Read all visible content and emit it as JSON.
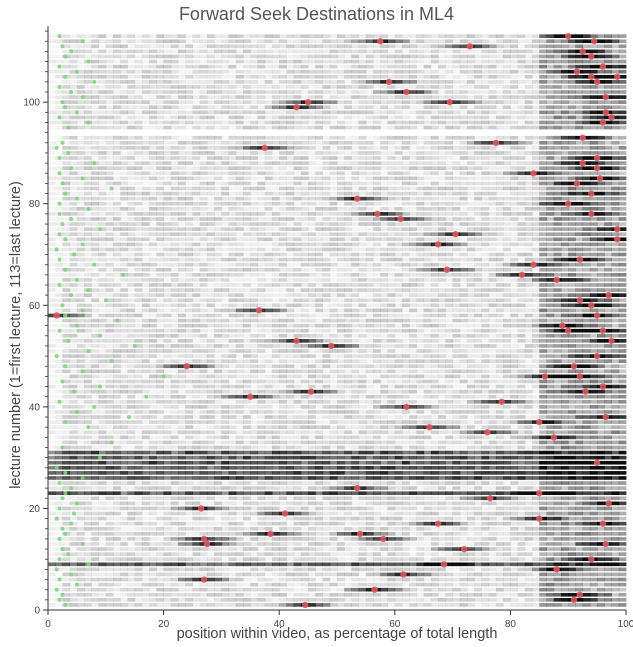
{
  "chart_data": {
    "type": "heatmap",
    "title": "Forward Seek Destinations in ML4",
    "xlabel": "position within video, as percentage of total length",
    "ylabel": "lecture number (1=first lecture, 113=last lecture)",
    "xlim": [
      0,
      100
    ],
    "ylim": [
      0,
      115
    ],
    "x_ticks": [
      0,
      20,
      40,
      60,
      80,
      100
    ],
    "y_ticks": [
      0,
      20,
      40,
      60,
      80,
      100
    ],
    "grid": false,
    "legend": "none",
    "rows": 113,
    "colors": {
      "intensity": "#000000",
      "max_marker": "#e0565b",
      "min_marker": "#7ed67a",
      "axis": "#333333",
      "title": "#555555"
    },
    "max_points": [
      {
        "x": 44.5,
        "y": 1
      },
      {
        "x": 91,
        "y": 2
      },
      {
        "x": 92,
        "y": 3
      },
      {
        "x": 56.5,
        "y": 4
      },
      {
        "x": 27,
        "y": 6
      },
      {
        "x": 61.5,
        "y": 7
      },
      {
        "x": 88,
        "y": 8
      },
      {
        "x": 68.5,
        "y": 9
      },
      {
        "x": 94,
        "y": 10
      },
      {
        "x": 72,
        "y": 12
      },
      {
        "x": 27.5,
        "y": 13
      },
      {
        "x": 96.5,
        "y": 13
      },
      {
        "x": 58,
        "y": 14
      },
      {
        "x": 27,
        "y": 14
      },
      {
        "x": 38.5,
        "y": 15
      },
      {
        "x": 54,
        "y": 15
      },
      {
        "x": 67.5,
        "y": 17
      },
      {
        "x": 96,
        "y": 17
      },
      {
        "x": 85,
        "y": 18
      },
      {
        "x": 41,
        "y": 19
      },
      {
        "x": 26.5,
        "y": 20
      },
      {
        "x": 97,
        "y": 21
      },
      {
        "x": 76.5,
        "y": 22
      },
      {
        "x": 85,
        "y": 23
      },
      {
        "x": 53.5,
        "y": 24
      },
      {
        "x": 95,
        "y": 29
      },
      {
        "x": 87.5,
        "y": 34
      },
      {
        "x": 76,
        "y": 35
      },
      {
        "x": 66,
        "y": 36
      },
      {
        "x": 85,
        "y": 37
      },
      {
        "x": 96.5,
        "y": 38
      },
      {
        "x": 62,
        "y": 40
      },
      {
        "x": 78.5,
        "y": 41
      },
      {
        "x": 35,
        "y": 42
      },
      {
        "x": 45.5,
        "y": 43
      },
      {
        "x": 93,
        "y": 43
      },
      {
        "x": 96,
        "y": 44
      },
      {
        "x": 86,
        "y": 46
      },
      {
        "x": 92,
        "y": 46
      },
      {
        "x": 24,
        "y": 48
      },
      {
        "x": 91,
        "y": 48
      },
      {
        "x": 95,
        "y": 50
      },
      {
        "x": 49,
        "y": 52
      },
      {
        "x": 97.5,
        "y": 53
      },
      {
        "x": 43,
        "y": 53
      },
      {
        "x": 90,
        "y": 55
      },
      {
        "x": 96,
        "y": 55
      },
      {
        "x": 89,
        "y": 56
      },
      {
        "x": 1.5,
        "y": 58
      },
      {
        "x": 95,
        "y": 58
      },
      {
        "x": 36.5,
        "y": 59
      },
      {
        "x": 94,
        "y": 60
      },
      {
        "x": 92,
        "y": 61
      },
      {
        "x": 97,
        "y": 62
      },
      {
        "x": 88,
        "y": 65
      },
      {
        "x": 82,
        "y": 66
      },
      {
        "x": 69,
        "y": 67
      },
      {
        "x": 84,
        "y": 68
      },
      {
        "x": 92,
        "y": 69
      },
      {
        "x": 67.5,
        "y": 72
      },
      {
        "x": 98.5,
        "y": 73
      },
      {
        "x": 70.5,
        "y": 74
      },
      {
        "x": 98.5,
        "y": 75
      },
      {
        "x": 61,
        "y": 77
      },
      {
        "x": 57,
        "y": 78
      },
      {
        "x": 94,
        "y": 78
      },
      {
        "x": 90,
        "y": 80
      },
      {
        "x": 53.5,
        "y": 81
      },
      {
        "x": 94,
        "y": 82
      },
      {
        "x": 91.5,
        "y": 84
      },
      {
        "x": 95.5,
        "y": 85
      },
      {
        "x": 84,
        "y": 86
      },
      {
        "x": 95,
        "y": 87
      },
      {
        "x": 92.5,
        "y": 88
      },
      {
        "x": 95,
        "y": 89
      },
      {
        "x": 37.5,
        "y": 91
      },
      {
        "x": 77.5,
        "y": 92
      },
      {
        "x": 92.5,
        "y": 93
      },
      {
        "x": 96,
        "y": 96
      },
      {
        "x": 97.5,
        "y": 97
      },
      {
        "x": 96.5,
        "y": 98
      },
      {
        "x": 43,
        "y": 99
      },
      {
        "x": 69.5,
        "y": 100
      },
      {
        "x": 45,
        "y": 100
      },
      {
        "x": 62,
        "y": 102
      },
      {
        "x": 96.5,
        "y": 101
      },
      {
        "x": 95,
        "y": 104
      },
      {
        "x": 59,
        "y": 104
      },
      {
        "x": 94,
        "y": 105
      },
      {
        "x": 98.5,
        "y": 105
      },
      {
        "x": 91.5,
        "y": 106
      },
      {
        "x": 96,
        "y": 107
      },
      {
        "x": 94,
        "y": 109
      },
      {
        "x": 92.5,
        "y": 110
      },
      {
        "x": 57.5,
        "y": 112
      },
      {
        "x": 73,
        "y": 111
      },
      {
        "x": 90,
        "y": 113
      },
      {
        "x": 94.5,
        "y": 112
      }
    ],
    "min_points": [
      {
        "x": 3,
        "y": 1
      },
      {
        "x": 2,
        "y": 2
      },
      {
        "x": 2.5,
        "y": 3
      },
      {
        "x": 1.5,
        "y": 4
      },
      {
        "x": 5,
        "y": 5
      },
      {
        "x": 2,
        "y": 6
      },
      {
        "x": 4,
        "y": 7
      },
      {
        "x": 1.5,
        "y": 8
      },
      {
        "x": 7,
        "y": 9
      },
      {
        "x": 2,
        "y": 10
      },
      {
        "x": 3.5,
        "y": 11
      },
      {
        "x": 2.5,
        "y": 12
      },
      {
        "x": 6,
        "y": 13
      },
      {
        "x": 2,
        "y": 14
      },
      {
        "x": 3,
        "y": 15
      },
      {
        "x": 2.5,
        "y": 16
      },
      {
        "x": 4,
        "y": 17
      },
      {
        "x": 1.5,
        "y": 18
      },
      {
        "x": 4.5,
        "y": 19
      },
      {
        "x": 2,
        "y": 20
      },
      {
        "x": 5,
        "y": 21
      },
      {
        "x": 2.5,
        "y": 22
      },
      {
        "x": 3,
        "y": 23
      },
      {
        "x": 4,
        "y": 24
      },
      {
        "x": 2,
        "y": 25
      },
      {
        "x": 6,
        "y": 26
      },
      {
        "x": 3,
        "y": 27
      },
      {
        "x": 1.5,
        "y": 28
      },
      {
        "x": 9,
        "y": 30
      },
      {
        "x": 2.5,
        "y": 32
      },
      {
        "x": 11,
        "y": 33
      },
      {
        "x": 7,
        "y": 36
      },
      {
        "x": 3,
        "y": 37
      },
      {
        "x": 14,
        "y": 38
      },
      {
        "x": 5,
        "y": 39
      },
      {
        "x": 8,
        "y": 40
      },
      {
        "x": 2,
        "y": 41
      },
      {
        "x": 17,
        "y": 42
      },
      {
        "x": 4.5,
        "y": 43
      },
      {
        "x": 9,
        "y": 44
      },
      {
        "x": 2.5,
        "y": 45
      },
      {
        "x": 20,
        "y": 46
      },
      {
        "x": 6,
        "y": 47
      },
      {
        "x": 3,
        "y": 48
      },
      {
        "x": 11,
        "y": 49
      },
      {
        "x": 1.5,
        "y": 50
      },
      {
        "x": 7,
        "y": 51
      },
      {
        "x": 15,
        "y": 52
      },
      {
        "x": 3.5,
        "y": 53
      },
      {
        "x": 9,
        "y": 54
      },
      {
        "x": 2,
        "y": 55
      },
      {
        "x": 5,
        "y": 56
      },
      {
        "x": 12,
        "y": 57
      },
      {
        "x": 3,
        "y": 58
      },
      {
        "x": 6,
        "y": 59
      },
      {
        "x": 2.5,
        "y": 60
      },
      {
        "x": 10,
        "y": 61
      },
      {
        "x": 4,
        "y": 62
      },
      {
        "x": 7,
        "y": 63
      },
      {
        "x": 2,
        "y": 64
      },
      {
        "x": 5,
        "y": 65
      },
      {
        "x": 13,
        "y": 66
      },
      {
        "x": 3,
        "y": 67
      },
      {
        "x": 8,
        "y": 68
      },
      {
        "x": 2,
        "y": 69
      },
      {
        "x": 4.5,
        "y": 70
      },
      {
        "x": 1.5,
        "y": 71
      },
      {
        "x": 6,
        "y": 72
      },
      {
        "x": 3,
        "y": 73
      },
      {
        "x": 2,
        "y": 74
      },
      {
        "x": 9,
        "y": 75
      },
      {
        "x": 2.5,
        "y": 76
      },
      {
        "x": 4,
        "y": 77
      },
      {
        "x": 2,
        "y": 78
      },
      {
        "x": 7,
        "y": 79
      },
      {
        "x": 2,
        "y": 80
      },
      {
        "x": 5,
        "y": 81
      },
      {
        "x": 3,
        "y": 82
      },
      {
        "x": 11,
        "y": 83
      },
      {
        "x": 2.5,
        "y": 84
      },
      {
        "x": 6,
        "y": 85
      },
      {
        "x": 2,
        "y": 86
      },
      {
        "x": 4,
        "y": 87
      },
      {
        "x": 8,
        "y": 88
      },
      {
        "x": 2,
        "y": 89
      },
      {
        "x": 3.5,
        "y": 90
      },
      {
        "x": 1.5,
        "y": 91
      },
      {
        "x": 2.5,
        "y": 92
      },
      {
        "x": 3.5,
        "y": 95
      },
      {
        "x": 7,
        "y": 96
      },
      {
        "x": 2,
        "y": 97
      },
      {
        "x": 5,
        "y": 98
      },
      {
        "x": 3,
        "y": 99
      },
      {
        "x": 2.5,
        "y": 100
      },
      {
        "x": 6,
        "y": 101
      },
      {
        "x": 4,
        "y": 102
      },
      {
        "x": 2,
        "y": 103
      },
      {
        "x": 8,
        "y": 104
      },
      {
        "x": 3,
        "y": 105
      },
      {
        "x": 5,
        "y": 106
      },
      {
        "x": 2,
        "y": 107
      },
      {
        "x": 7,
        "y": 108
      },
      {
        "x": 3,
        "y": 109
      },
      {
        "x": 4,
        "y": 110
      },
      {
        "x": 2.5,
        "y": 111
      },
      {
        "x": 6,
        "y": 112
      },
      {
        "x": 2,
        "y": 113
      }
    ],
    "dense_rows": [
      9,
      23,
      26,
      27,
      28,
      29,
      30,
      31
    ]
  }
}
